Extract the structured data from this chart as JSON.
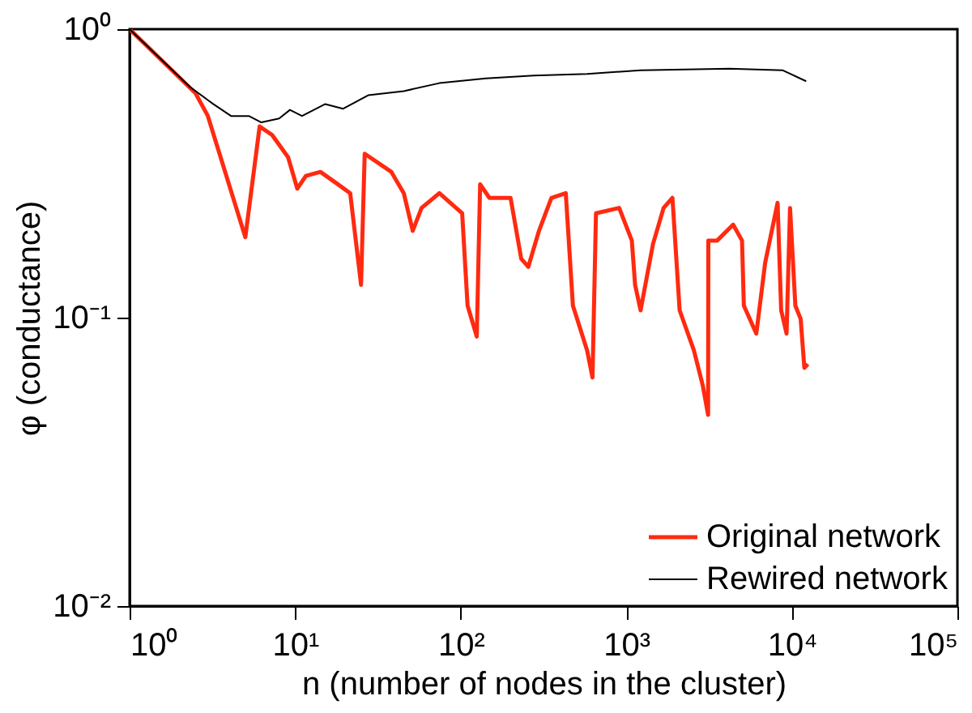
{
  "chart_data": {
    "type": "line",
    "xlabel": "n (number of nodes in the cluster)",
    "ylabel": "φ (conductance)",
    "log": "xy",
    "grid": false,
    "legend": "bottom right",
    "marker": "none",
    "line_style": "solid",
    "xlim": [
      1,
      100000
    ],
    "ylim": [
      0.01,
      1
    ],
    "xticks": [
      {
        "value": 1,
        "label": "10⁰"
      },
      {
        "value": 10,
        "label": "10¹"
      },
      {
        "value": 100,
        "label": "10²"
      },
      {
        "value": 1000,
        "label": "10³"
      },
      {
        "value": 10000,
        "label": "10⁴"
      },
      {
        "value": 100000,
        "label": "10⁵"
      }
    ],
    "yticks": [
      {
        "value": 0.01,
        "label": "10⁻²"
      },
      {
        "value": 0.1,
        "label": "10⁻¹"
      },
      {
        "value": 1,
        "label": "10⁰"
      }
    ],
    "series": [
      {
        "name": "Original network",
        "color": "#ff2a10",
        "x": [
          1,
          2.5,
          2.97,
          5.0,
          6.1,
          7.25,
          9.06,
          10.3,
          11.6,
          14.2,
          18.1,
          21.5,
          25.0,
          26.3,
          38.1,
          45.3,
          51.3,
          58.0,
          74.3,
          102,
          110,
          125,
          131,
          149,
          200,
          232,
          256,
          297,
          353,
          431,
          476,
          580,
          625,
          656,
          906,
          1080,
          1130,
          1220,
          1450,
          1680,
          1900,
          2100,
          2560,
          2900,
          3120,
          3130,
          3540,
          4420,
          5000,
          5130,
          6100,
          6900,
          8200,
          8620,
          9290,
          9750,
          10500,
          11300,
          11900,
          12500
        ],
        "values": [
          1,
          0.6,
          0.5,
          0.19,
          0.46,
          0.43,
          0.36,
          0.28,
          0.31,
          0.32,
          0.29,
          0.27,
          0.13,
          0.37,
          0.32,
          0.27,
          0.2,
          0.24,
          0.27,
          0.23,
          0.11,
          0.086,
          0.29,
          0.26,
          0.26,
          0.16,
          0.15,
          0.2,
          0.26,
          0.27,
          0.11,
          0.077,
          0.062,
          0.23,
          0.24,
          0.185,
          0.13,
          0.106,
          0.18,
          0.24,
          0.26,
          0.106,
          0.077,
          0.058,
          0.046,
          0.185,
          0.185,
          0.21,
          0.185,
          0.11,
          0.088,
          0.155,
          0.25,
          0.106,
          0.088,
          0.24,
          0.11,
          0.099,
          0.067,
          0.069
        ]
      },
      {
        "name": "Rewired network",
        "color": "#000000",
        "x": [
          1,
          2.32,
          3.2,
          4.1,
          5.25,
          6.25,
          8.0,
          9.3,
          11.0,
          15.2,
          19.5,
          27.6,
          45.3,
          74.3,
          142,
          276,
          580,
          1220,
          4200,
          8830,
          12200
        ],
        "values": [
          1,
          0.63,
          0.55,
          0.5,
          0.5,
          0.475,
          0.49,
          0.525,
          0.5,
          0.55,
          0.53,
          0.59,
          0.61,
          0.65,
          0.675,
          0.69,
          0.7,
          0.72,
          0.73,
          0.72,
          0.66
        ]
      }
    ]
  }
}
